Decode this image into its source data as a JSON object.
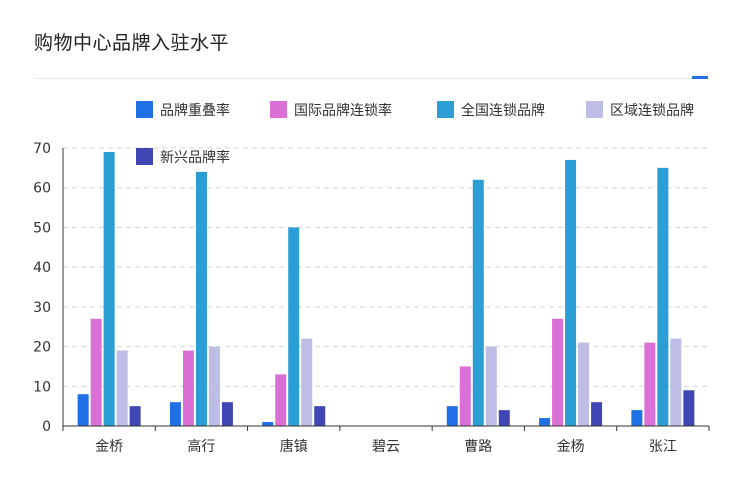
{
  "header": {
    "title": "购物中心品牌入驻水平"
  },
  "chart_data": {
    "type": "bar",
    "title": "购物中心品牌入驻水平",
    "xlabel": "",
    "ylabel": "",
    "ylim": [
      0,
      70
    ],
    "yticks": [
      0,
      10,
      20,
      30,
      40,
      50,
      60,
      70
    ],
    "grid": true,
    "legend_position": "top",
    "categories": [
      "金桥",
      "高行",
      "唐镇",
      "碧云",
      "曹路",
      "金杨",
      "张江"
    ],
    "series": [
      {
        "name": "品牌重叠率",
        "color": "#1f6fe5",
        "values": [
          8,
          6,
          1,
          0,
          5,
          2,
          4
        ]
      },
      {
        "name": "国际品牌连锁率",
        "color": "#da70d6",
        "values": [
          27,
          19,
          13,
          0,
          15,
          27,
          21
        ]
      },
      {
        "name": "全国连锁品牌",
        "color": "#2b9ed6",
        "values": [
          69,
          64,
          50,
          0,
          62,
          67,
          65
        ]
      },
      {
        "name": "区域连锁品牌",
        "color": "#bdbde6",
        "values": [
          19,
          20,
          22,
          0,
          20,
          21,
          22
        ]
      },
      {
        "name": "新兴品牌率",
        "color": "#4046b3",
        "values": [
          5,
          6,
          5,
          0,
          4,
          6,
          9
        ]
      }
    ]
  }
}
